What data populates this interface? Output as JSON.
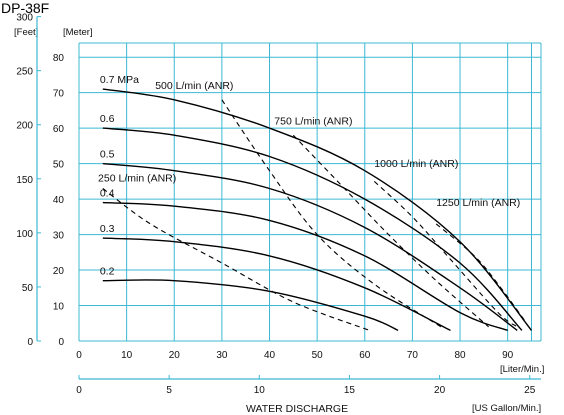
{
  "chart_data": {
    "type": "line",
    "title": "DP-38F",
    "xlabel": "WATER DISCHARGE",
    "axes": {
      "y_left_feet": {
        "unit": "[Feet]",
        "range": [
          0,
          300
        ],
        "ticks": [
          "0",
          "50",
          "100",
          "150",
          "200",
          "250",
          "300"
        ]
      },
      "y_right_meter": {
        "unit": "[Meter]",
        "range": [
          0,
          80
        ],
        "ticks": [
          "10",
          "20",
          "30",
          "40",
          "50",
          "60",
          "70",
          "80"
        ],
        "zero": "0"
      },
      "x_liter": {
        "unit": "[Liter/Min.]",
        "range": [
          0,
          97
        ],
        "ticks": [
          "0",
          "10",
          "20",
          "30",
          "40",
          "50",
          "60",
          "70",
          "80",
          "90"
        ]
      },
      "x_gallon": {
        "unit": "[US Gallon/Min.]",
        "range": [
          0,
          25.6
        ],
        "ticks": [
          "0",
          "5",
          "10",
          "15",
          "20",
          "25"
        ]
      }
    },
    "grid": true,
    "pressure_curves": [
      {
        "name": "0.7 MPa",
        "points": [
          [
            5,
            71
          ],
          [
            20,
            68
          ],
          [
            40,
            60
          ],
          [
            60,
            48
          ],
          [
            80,
            28
          ],
          [
            95,
            3
          ]
        ]
      },
      {
        "name": "0.6",
        "points": [
          [
            5,
            60
          ],
          [
            20,
            58
          ],
          [
            40,
            52
          ],
          [
            60,
            40
          ],
          [
            80,
            22
          ],
          [
            93,
            3
          ]
        ]
      },
      {
        "name": "0.5",
        "points": [
          [
            5,
            50
          ],
          [
            20,
            48
          ],
          [
            40,
            43
          ],
          [
            60,
            32
          ],
          [
            80,
            15
          ],
          [
            92,
            3
          ]
        ]
      },
      {
        "name": "0.4",
        "points": [
          [
            5,
            39
          ],
          [
            20,
            38
          ],
          [
            40,
            34
          ],
          [
            60,
            24
          ],
          [
            80,
            8
          ],
          [
            90,
            3
          ]
        ]
      },
      {
        "name": "0.3",
        "points": [
          [
            5,
            29
          ],
          [
            20,
            28
          ],
          [
            40,
            24
          ],
          [
            60,
            15
          ],
          [
            78,
            3
          ]
        ]
      },
      {
        "name": "0.2",
        "points": [
          [
            5,
            17
          ],
          [
            20,
            17
          ],
          [
            40,
            14
          ],
          [
            60,
            7
          ],
          [
            67,
            3
          ]
        ]
      }
    ],
    "air_consumption_curves": [
      {
        "name": "250 L/min (ANR)",
        "points": [
          [
            5,
            43
          ],
          [
            15,
            33
          ],
          [
            30,
            22
          ],
          [
            45,
            11
          ],
          [
            61,
            3
          ]
        ]
      },
      {
        "name": "500 L/min (ANR)",
        "points": [
          [
            30,
            68
          ],
          [
            40,
            48
          ],
          [
            50,
            30
          ],
          [
            62,
            16
          ],
          [
            76,
            4
          ]
        ]
      },
      {
        "name": "750 L/min (ANR)",
        "points": [
          [
            45,
            58
          ],
          [
            55,
            44
          ],
          [
            65,
            30
          ],
          [
            75,
            17
          ],
          [
            86,
            4
          ]
        ]
      },
      {
        "name": "1000 L/min (ANR)",
        "points": [
          [
            62,
            45
          ],
          [
            70,
            35
          ],
          [
            78,
            23
          ],
          [
            88,
            8
          ],
          [
            92,
            4
          ]
        ]
      },
      {
        "name": "1250 L/min (ANR)",
        "points": [
          [
            75,
            33
          ],
          [
            83,
            24
          ],
          [
            88,
            16
          ],
          [
            94,
            5
          ]
        ]
      }
    ]
  }
}
